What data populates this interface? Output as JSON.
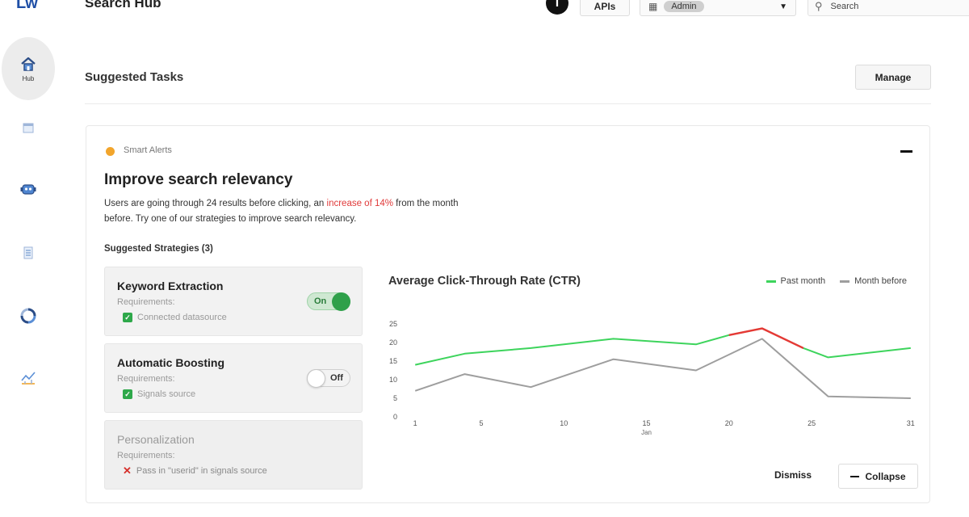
{
  "header": {
    "logo": "Lw",
    "title": "Search Hub",
    "info_icon": "info-icon",
    "apis_label": "APIs",
    "app_selector": {
      "icon": "app-grid-icon",
      "value": "Admin"
    },
    "search_placeholder": "Search"
  },
  "sidebar": {
    "items": [
      {
        "icon": "home-icon",
        "label": "Hub",
        "active": true
      },
      {
        "icon": "calendar-icon"
      },
      {
        "icon": "robot-icon"
      },
      {
        "icon": "document-icon"
      },
      {
        "icon": "sync-icon"
      },
      {
        "icon": "analytics-icon"
      }
    ]
  },
  "tasks": {
    "title": "Suggested Tasks",
    "manage_label": "Manage"
  },
  "card": {
    "tag": "Smart Alerts",
    "title": "Improve search relevancy",
    "desc_before": "Users are going through 24 results before clicking, an ",
    "desc_highlight": "increase of 14%",
    "desc_after": " from the month before. Try one of our strategies to improve search relevancy.",
    "strategies_title": "Suggested Strategies (3)",
    "strategies": [
      {
        "name": "Keyword Extraction",
        "req_label": "Requirements:",
        "req_item": "Connected datasource",
        "req_met": true,
        "toggle": "On"
      },
      {
        "name": "Automatic Boosting",
        "req_label": "Requirements:",
        "req_item": "Signals source",
        "req_met": true,
        "toggle": "Off"
      },
      {
        "name": "Personalization",
        "req_label": "Requirements:",
        "req_item": "Pass in \"userid\" in signals source",
        "req_met": false
      }
    ],
    "dismiss_label": "Dismiss",
    "collapse_label": "Collapse"
  },
  "colors": {
    "accent_green": "#3dd45c",
    "accent_red": "#e53935",
    "grey_series": "#9e9e9e",
    "alert_orange": "#f2a52c"
  },
  "chart_data": {
    "type": "line",
    "title": "Average Click-Through Rate (CTR)",
    "x_ticks": [
      "1",
      "5",
      "10",
      "15",
      "20",
      "25",
      "31"
    ],
    "x_sublabel": "Jan",
    "y_ticks": [
      "0",
      "5",
      "10",
      "15",
      "20",
      "25"
    ],
    "ylim": [
      0,
      25
    ],
    "xlim": [
      0.6,
      31.4
    ],
    "grid": false,
    "legend_position": "top-right",
    "series": [
      {
        "name": "Past month",
        "color": "#3dd45c",
        "highlight_color": "#e53935",
        "highlight_range": [
          20,
          24.5
        ],
        "x": [
          1,
          4,
          8,
          13,
          18,
          20,
          22,
          24.5,
          26,
          31
        ],
        "y": [
          14,
          17,
          18.5,
          21,
          19.5,
          22,
          23.8,
          18.5,
          16,
          18.5
        ]
      },
      {
        "name": "Month before",
        "color": "#9e9e9e",
        "x": [
          1,
          4,
          8,
          13,
          18,
          22,
          26,
          31
        ],
        "y": [
          7,
          11.5,
          8,
          15.5,
          12.5,
          21,
          5.5,
          5
        ]
      }
    ]
  }
}
